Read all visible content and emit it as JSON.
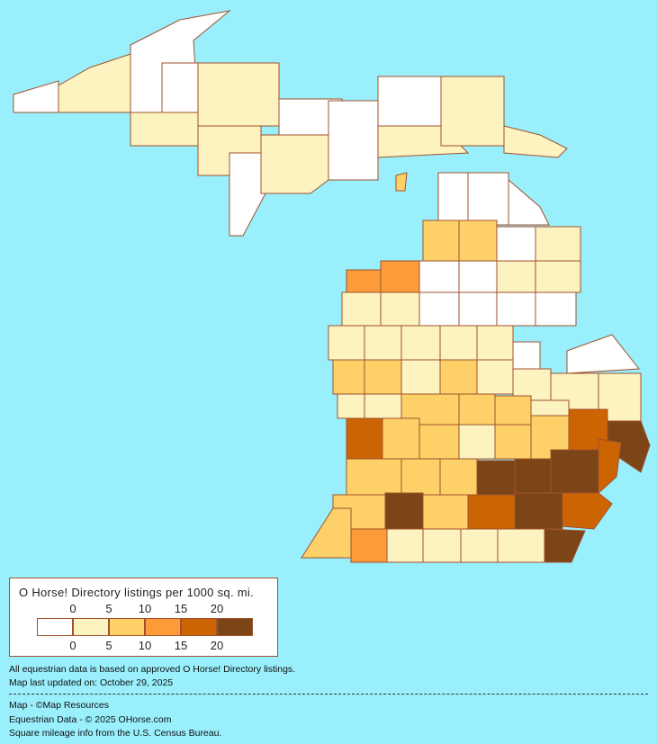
{
  "legend": {
    "title": "O Horse! Directory listings per 1000 sq. mi.",
    "ticks": [
      "0",
      "5",
      "10",
      "15",
      "20"
    ],
    "colors": [
      "#ffffff",
      "#fdf3c0",
      "#fdd068",
      "#fd9b3a",
      "#cc6404",
      "#7b4518"
    ]
  },
  "map": {
    "water_color": "#99effc",
    "border_color": "#a0522d",
    "county_levels_note_free": true,
    "upper_peninsula_levels": [
      0,
      1,
      0,
      0,
      1,
      1,
      1,
      0,
      1,
      0,
      0,
      0,
      1,
      1,
      1,
      2
    ],
    "lower_peninsula_levels": [
      0,
      0,
      0,
      2,
      2,
      0,
      1,
      3,
      3,
      0,
      0,
      1,
      1,
      1,
      1,
      0,
      0,
      0,
      0,
      1,
      1,
      1,
      1,
      1,
      0,
      0,
      2,
      2,
      1,
      2,
      1,
      1,
      1,
      1,
      2,
      2,
      1,
      1,
      2,
      1,
      4,
      2,
      2,
      1,
      2,
      2,
      4,
      5,
      2,
      2,
      2,
      5,
      5,
      5,
      4,
      2,
      5,
      2,
      4,
      5,
      4,
      3,
      1,
      1,
      1,
      1,
      5,
      2
    ]
  },
  "notes": {
    "line1": "All equestrian data is based on approved O Horse! Directory listings.",
    "line2": "Map last updated on: October 29, 2025",
    "credit1": "Map - ©Map Resources",
    "credit2": "Equestrian Data - © 2025 OHorse.com",
    "credit3": "Square mileage info from the U.S. Census Bureau."
  }
}
